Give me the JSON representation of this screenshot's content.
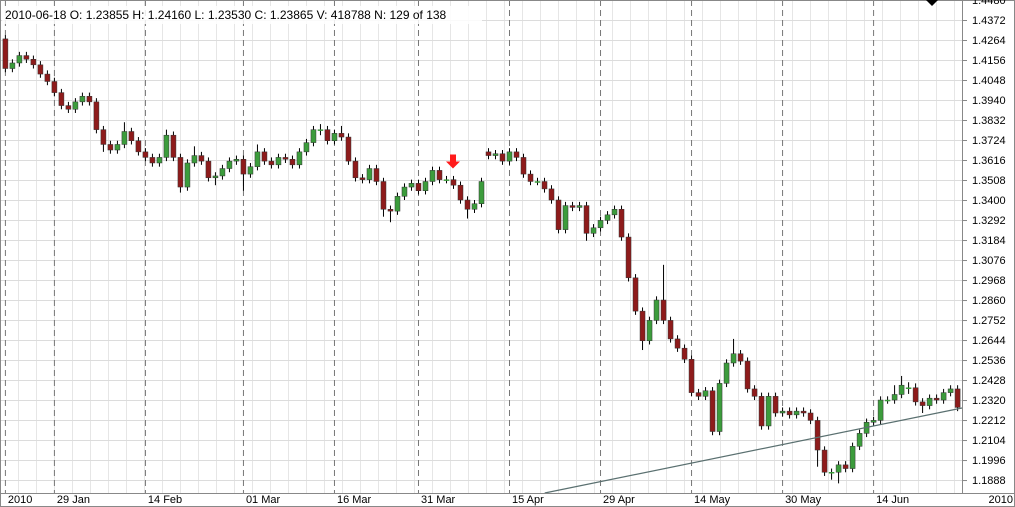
{
  "chart_data": {
    "type": "candlestick",
    "info": "2010-06-18  O: 1.23855  H: 1.24160  L: 1.23530  C: 1.23865  V: 418788  N: 129 of 138",
    "up_color": "#3c9c3c",
    "down_color": "#8e1b1b",
    "xlim": [
      -0.7,
      136.7
    ],
    "ylim": [
      1.1818,
      1.448
    ],
    "yticks": [
      {
        "value": 1.448,
        "label": "1.4480"
      },
      1.4372,
      1.4264,
      1.4156,
      1.4048,
      {
        "value": 1.394,
        "label": "1.3940"
      },
      1.3832,
      1.3724,
      1.3616,
      1.3508,
      {
        "value": 1.34,
        "label": "1.3400"
      },
      1.3292,
      1.3184,
      1.3076,
      1.2968,
      {
        "value": 1.286,
        "label": "1.2860"
      },
      1.2752,
      1.2644,
      1.2536,
      1.2428,
      {
        "value": 1.232,
        "label": "1.2320"
      },
      1.2212,
      1.2104,
      1.1996,
      1.1888
    ],
    "xticks": [
      {
        "value": 0,
        "label": "2010"
      },
      {
        "value": 7,
        "label": "29 Jan"
      },
      {
        "value": 20,
        "label": "14 Feb"
      },
      {
        "value": 34,
        "label": "01 Mar"
      },
      {
        "value": 47,
        "label": "16 Mar"
      },
      {
        "value": 59,
        "label": "31 Mar"
      },
      {
        "value": 72,
        "label": "15 Apr"
      },
      {
        "value": 85,
        "label": "29 Apr"
      },
      {
        "value": 98,
        "label": "14 May"
      },
      {
        "value": 111,
        "label": "30 May"
      },
      {
        "value": 124,
        "label": "14 Jun"
      }
    ],
    "corner_label": "2010",
    "grid": true,
    "open": [
      1.427,
      1.411,
      1.414,
      1.418,
      1.416,
      1.413,
      1.408,
      1.404,
      1.398,
      1.391,
      1.389,
      1.393,
      1.396,
      1.393,
      1.378,
      1.37,
      1.367,
      1.37,
      1.377,
      1.372,
      1.366,
      1.363,
      1.36,
      1.363,
      1.375,
      1.363,
      1.347,
      1.36,
      1.364,
      1.361,
      1.352,
      1.353,
      1.357,
      1.361,
      1.362,
      1.354,
      1.358,
      1.366,
      1.361,
      1.359,
      1.363,
      1.362,
      1.359,
      1.366,
      1.371,
      1.378,
      1.378,
      1.372,
      1.376,
      1.374,
      1.361,
      1.352,
      1.351,
      1.357,
      1.35,
      1.335,
      1.334,
      1.342,
      1.347,
      1.349,
      1.345,
      1.35,
      1.356,
      1.351,
      1.351,
      1.348,
      1.34,
      1.335,
      1.338,
      1.366,
      1.364,
      1.365,
      1.361,
      1.366,
      1.363,
      1.354,
      1.35,
      1.35,
      1.346,
      1.34,
      1.324,
      1.337,
      1.336,
      1.337,
      1.322,
      1.325,
      1.329,
      1.332,
      1.335,
      1.32,
      1.298,
      1.28,
      1.264,
      1.275,
      1.286,
      1.275,
      1.265,
      1.26,
      1.254,
      1.236,
      1.234,
      1.237,
      1.215,
      1.241,
      1.252,
      1.257,
      1.253,
      1.238,
      1.234,
      1.218,
      1.234,
      1.225,
      1.226,
      1.224,
      1.226,
      1.225,
      1.221,
      1.205,
      1.193,
      1.193,
      1.197,
      1.195,
      1.207,
      1.214,
      1.22,
      1.221,
      1.232,
      1.232,
      1.235,
      1.23855,
      1.23865,
      1.231,
      1.229,
      1.233,
      1.232,
      1.236,
      1.238
    ],
    "high": [
      1.429,
      1.416,
      1.42,
      1.42,
      1.418,
      1.415,
      1.41,
      1.406,
      1.4,
      1.393,
      1.395,
      1.398,
      1.398,
      1.395,
      1.38,
      1.372,
      1.372,
      1.382,
      1.379,
      1.374,
      1.368,
      1.365,
      1.365,
      1.378,
      1.377,
      1.365,
      1.362,
      1.369,
      1.366,
      1.363,
      1.355,
      1.359,
      1.363,
      1.364,
      1.364,
      1.36,
      1.37,
      1.368,
      1.363,
      1.365,
      1.365,
      1.364,
      1.368,
      1.373,
      1.38,
      1.381,
      1.38,
      1.378,
      1.38,
      1.376,
      1.363,
      1.354,
      1.359,
      1.359,
      1.352,
      1.337,
      1.344,
      1.349,
      1.351,
      1.351,
      1.352,
      1.358,
      1.358,
      1.353,
      1.353,
      1.35,
      1.342,
      1.34,
      1.352,
      1.368,
      1.367,
      1.367,
      1.368,
      1.368,
      1.365,
      1.356,
      1.352,
      1.352,
      1.348,
      1.342,
      1.339,
      1.339,
      1.339,
      1.339,
      1.327,
      1.331,
      1.334,
      1.337,
      1.337,
      1.322,
      1.3,
      1.282,
      1.277,
      1.288,
      1.305,
      1.277,
      1.267,
      1.262,
      1.256,
      1.238,
      1.239,
      1.239,
      1.243,
      1.254,
      1.265,
      1.259,
      1.255,
      1.24,
      1.236,
      1.236,
      1.236,
      1.228,
      1.228,
      1.228,
      1.228,
      1.227,
      1.223,
      1.207,
      1.195,
      1.199,
      1.199,
      1.209,
      1.216,
      1.222,
      1.223,
      1.234,
      1.234,
      1.24,
      1.245,
      1.2416,
      1.241,
      1.233,
      1.235,
      1.235,
      1.238,
      1.24,
      1.24
    ],
    "low": [
      1.409,
      1.409,
      1.412,
      1.414,
      1.411,
      1.406,
      1.402,
      1.396,
      1.389,
      1.387,
      1.387,
      1.391,
      1.391,
      1.376,
      1.366,
      1.365,
      1.365,
      1.368,
      1.37,
      1.364,
      1.361,
      1.358,
      1.358,
      1.361,
      1.361,
      1.344,
      1.345,
      1.358,
      1.359,
      1.35,
      1.348,
      1.351,
      1.355,
      1.359,
      1.345,
      1.352,
      1.356,
      1.359,
      1.357,
      1.357,
      1.36,
      1.357,
      1.357,
      1.364,
      1.369,
      1.375,
      1.37,
      1.37,
      1.372,
      1.359,
      1.35,
      1.349,
      1.349,
      1.348,
      1.331,
      1.328,
      1.332,
      1.34,
      1.345,
      1.343,
      1.343,
      1.348,
      1.349,
      1.349,
      1.346,
      1.338,
      1.33,
      1.333,
      1.336,
      1.362,
      1.362,
      1.359,
      1.359,
      1.361,
      1.352,
      1.348,
      1.348,
      1.344,
      1.338,
      1.322,
      1.322,
      1.334,
      1.334,
      1.318,
      1.32,
      1.323,
      1.327,
      1.33,
      1.318,
      1.296,
      1.278,
      1.259,
      1.262,
      1.273,
      1.273,
      1.263,
      1.258,
      1.252,
      1.234,
      1.232,
      1.232,
      1.213,
      1.213,
      1.239,
      1.25,
      1.251,
      1.236,
      1.232,
      1.216,
      1.216,
      1.223,
      1.223,
      1.222,
      1.222,
      1.223,
      1.219,
      1.196,
      1.191,
      1.189,
      1.187,
      1.193,
      1.193,
      1.205,
      1.212,
      1.218,
      1.219,
      1.23,
      1.23,
      1.233,
      1.2353,
      1.229,
      1.225,
      1.227,
      1.23,
      1.23,
      1.234,
      1.226
    ],
    "close": [
      1.411,
      1.414,
      1.418,
      1.416,
      1.413,
      1.408,
      1.404,
      1.398,
      1.391,
      1.389,
      1.393,
      1.396,
      1.393,
      1.378,
      1.37,
      1.367,
      1.37,
      1.377,
      1.372,
      1.366,
      1.363,
      1.36,
      1.363,
      1.375,
      1.363,
      1.347,
      1.36,
      1.364,
      1.361,
      1.352,
      1.353,
      1.357,
      1.361,
      1.362,
      1.354,
      1.358,
      1.366,
      1.361,
      1.359,
      1.363,
      1.362,
      1.359,
      1.366,
      1.371,
      1.378,
      1.378,
      1.372,
      1.376,
      1.374,
      1.361,
      1.352,
      1.351,
      1.357,
      1.35,
      1.335,
      1.334,
      1.342,
      1.347,
      1.349,
      1.345,
      1.35,
      1.356,
      1.351,
      1.351,
      1.348,
      1.34,
      1.335,
      1.338,
      1.35,
      1.364,
      1.365,
      1.361,
      1.366,
      1.363,
      1.354,
      1.35,
      1.35,
      1.346,
      1.34,
      1.324,
      1.337,
      1.336,
      1.337,
      1.322,
      1.325,
      1.329,
      1.332,
      1.335,
      1.32,
      1.298,
      1.28,
      1.264,
      1.275,
      1.286,
      1.275,
      1.265,
      1.26,
      1.254,
      1.236,
      1.234,
      1.237,
      1.215,
      1.241,
      1.252,
      1.257,
      1.253,
      1.238,
      1.234,
      1.218,
      1.234,
      1.225,
      1.226,
      1.224,
      1.226,
      1.225,
      1.221,
      1.205,
      1.193,
      1.193,
      1.197,
      1.195,
      1.207,
      1.214,
      1.22,
      1.221,
      1.232,
      1.232,
      1.235,
      1.24,
      1.23865,
      1.231,
      1.229,
      1.233,
      1.232,
      1.236,
      1.238,
      1.228
    ],
    "trendline": {
      "x": [
        77.1,
        136.7
      ],
      "y": [
        1.1818,
        1.2277
      ],
      "color": "#5a7070"
    },
    "arrow": {
      "x": 64,
      "y": 1.357,
      "color": "#ff1a1a"
    }
  }
}
